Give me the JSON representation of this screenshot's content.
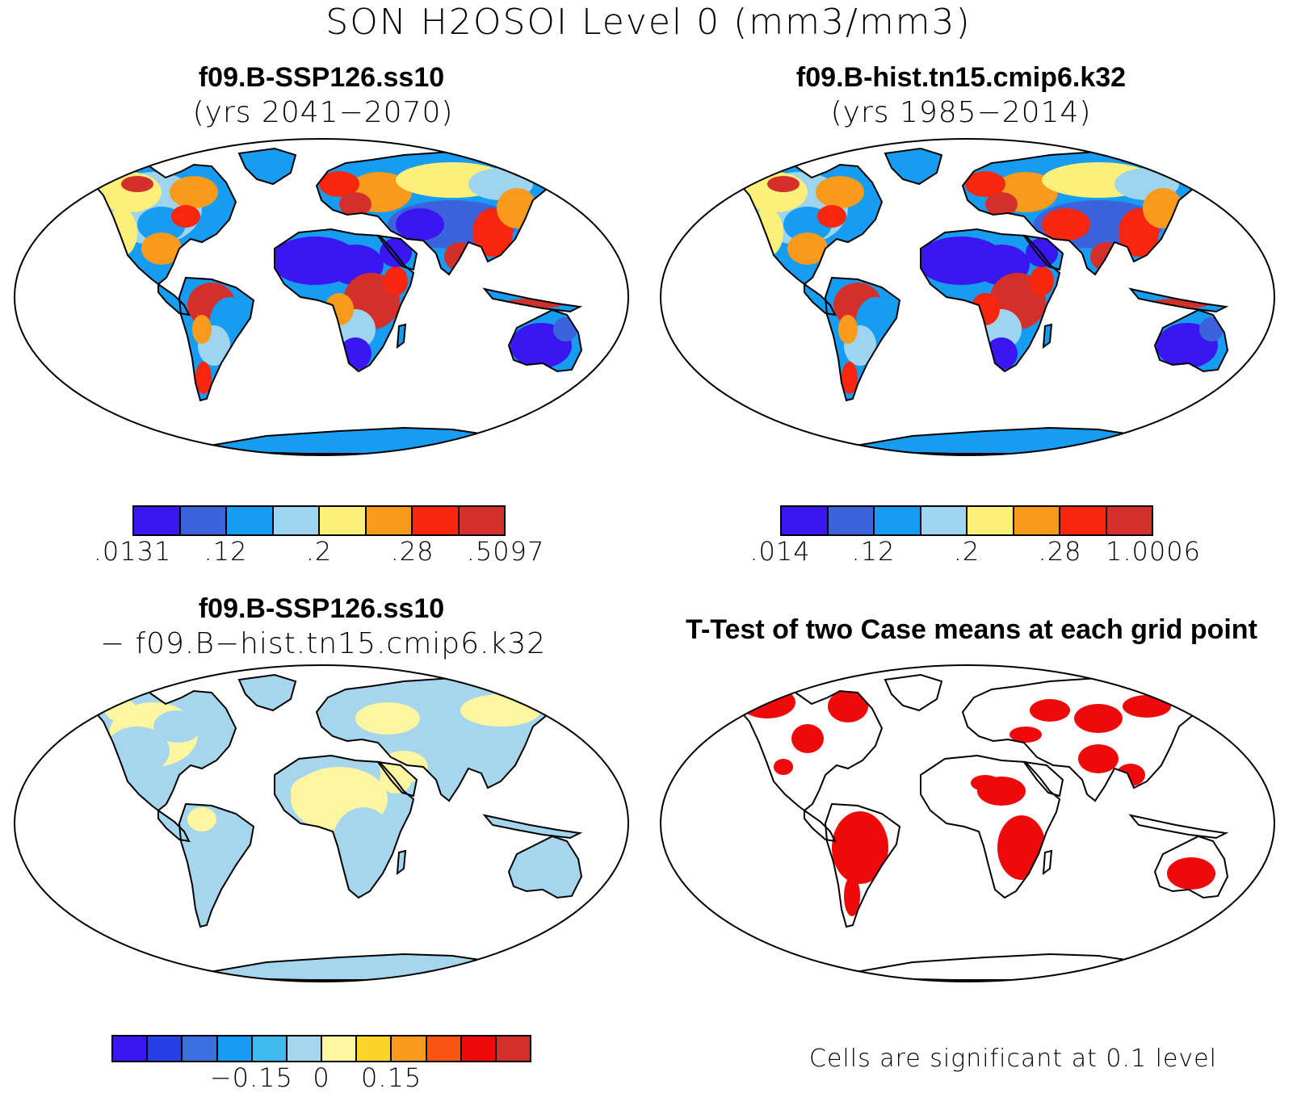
{
  "figure_title": "SON H2OSOI Level 0 (mm3/mm3)",
  "panels": {
    "top_left": {
      "title": "f09.B-SSP126.ss10",
      "subtitle": "(yrs 2041−2070)"
    },
    "top_right": {
      "title": "f09.B-hist.tn15.cmip6.k32",
      "subtitle": "(yrs 1985−2014)"
    },
    "bottom_left": {
      "title": "f09.B-SSP126.ss10",
      "subtitle": "− f09.B−hist.tn15.cmip6.k32"
    },
    "bottom_right": {
      "title": "T-Test of two Case means at each grid point"
    }
  },
  "colorbars": {
    "top_left": {
      "colors": [
        "#3a17f0",
        "#3b63dc",
        "#169cf0",
        "#9fd4ef",
        "#fcf07a",
        "#f89b1c",
        "#f8260d",
        "#d42f2a"
      ],
      "labels": [
        ".0131",
        ".12",
        ".2",
        ".28",
        ".5097"
      ]
    },
    "top_right": {
      "colors": [
        "#3a17f0",
        "#3b63dc",
        "#169cf0",
        "#9fd4ef",
        "#fcf07a",
        "#f89b1c",
        "#f8260d",
        "#d42f2a"
      ],
      "labels": [
        ".014",
        ".12",
        ".2",
        ".28",
        "1.0006"
      ]
    },
    "bottom_left": {
      "colors": [
        "#3a17f0",
        "#2540e6",
        "#3b6fe0",
        "#169cf0",
        "#3fbaf0",
        "#a5d6ee",
        "#fcf6a0",
        "#fcd42c",
        "#f89b1c",
        "#f85510",
        "#ee0a0a",
        "#d42f2a"
      ],
      "labels": [
        "−0.15",
        "0",
        "0.15"
      ]
    }
  },
  "significance_note": "Cells are significant at 0.1 level",
  "colors": {
    "significant": "#ee0a0a",
    "outline": "#000000"
  }
}
